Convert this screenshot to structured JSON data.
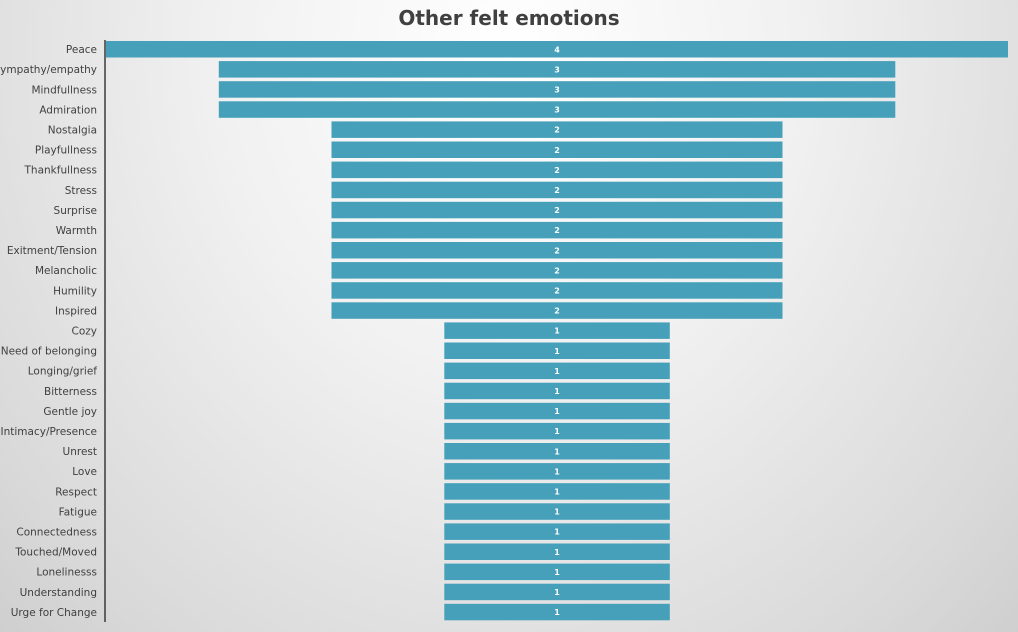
{
  "chart_data": {
    "type": "bar",
    "orientation": "horizontal",
    "layout": "centered-funnel",
    "title": "Other felt emotions",
    "xlabel": "",
    "ylabel": "",
    "categories": [
      "Peace",
      "Sympathy/empathy",
      "Mindfullness",
      "Admiration",
      "Nostalgia",
      "Playfullness",
      "Thankfullness",
      "Stress",
      "Surprise",
      "Warmth",
      "Exitment/Tension",
      "Melancholic",
      "Humility",
      "Inspired",
      "Cozy",
      "Need of belonging",
      "Longing/grief",
      "Bitterness",
      "Gentle joy",
      "Intimacy/Presence",
      "Unrest",
      "Love",
      "Respect",
      "Fatigue",
      "Connectedness",
      "Touched/Moved",
      "Lonelinesss",
      "Understanding",
      "Urge for Change"
    ],
    "values": [
      4,
      3,
      3,
      3,
      2,
      2,
      2,
      2,
      2,
      2,
      2,
      2,
      2,
      2,
      1,
      1,
      1,
      1,
      1,
      1,
      1,
      1,
      1,
      1,
      1,
      1,
      1,
      1,
      1
    ],
    "xlim": [
      0,
      4
    ],
    "grid": false,
    "legend": "none",
    "bar_color": "#46a0b9",
    "label_color": "#ffffff"
  }
}
